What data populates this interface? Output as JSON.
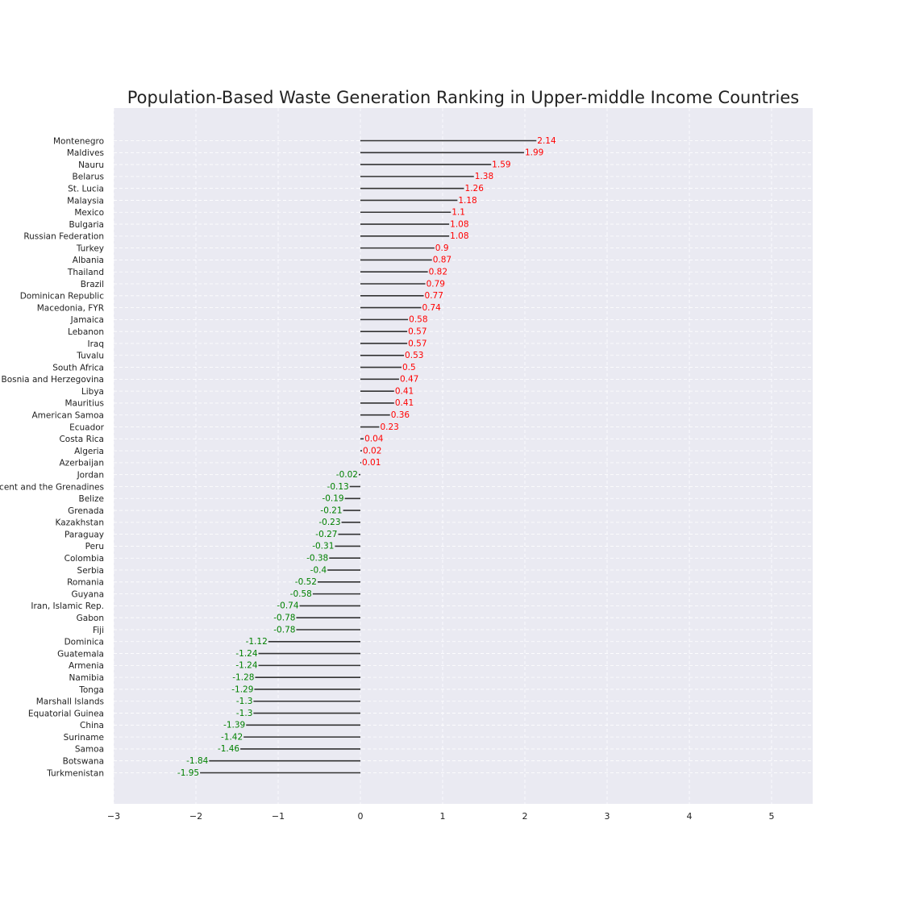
{
  "chart_data": {
    "type": "bar",
    "orientation": "horizontal",
    "title": "Population-Based Waste Generation Ranking in Upper-middle Income Countries",
    "xlabel": "",
    "ylabel": "",
    "xlim": [
      -3,
      5.5
    ],
    "xticks": [
      -3,
      -2,
      -1,
      0,
      1,
      2,
      3,
      4,
      5
    ],
    "xtick_labels": [
      "−3",
      "−2",
      "−1",
      "0",
      "1",
      "2",
      "3",
      "4",
      "5"
    ],
    "grid": true,
    "colors": {
      "positive_label": "#ff0000",
      "negative_label": "#008000",
      "line": "#333333",
      "background": "#eaeaf2",
      "grid": "#ffffff"
    },
    "categories": [
      "Montenegro",
      "Maldives",
      "Nauru",
      "Belarus",
      "St. Lucia",
      "Malaysia",
      "Mexico",
      "Bulgaria",
      "Russian Federation",
      "Turkey",
      "Albania",
      "Thailand",
      "Brazil",
      "Dominican Republic",
      "Macedonia, FYR",
      "Jamaica",
      "Lebanon",
      "Iraq",
      "Tuvalu",
      "South Africa",
      "Bosnia and Herzegovina",
      "Libya",
      "Mauritius",
      "American Samoa",
      "Ecuador",
      "Costa Rica",
      "Algeria",
      "Azerbaijan",
      "Jordan",
      "St. Vincent and the Grenadines",
      "Belize",
      "Grenada",
      "Kazakhstan",
      "Paraguay",
      "Peru",
      "Colombia",
      "Serbia",
      "Romania",
      "Guyana",
      "Iran, Islamic Rep.",
      "Gabon",
      "Fiji",
      "Dominica",
      "Guatemala",
      "Armenia",
      "Namibia",
      "Tonga",
      "Marshall Islands",
      "Equatorial Guinea",
      "China",
      "Suriname",
      "Samoa",
      "Botswana",
      "Turkmenistan"
    ],
    "values": [
      2.14,
      1.99,
      1.59,
      1.38,
      1.26,
      1.18,
      1.1,
      1.08,
      1.08,
      0.9,
      0.87,
      0.82,
      0.79,
      0.77,
      0.74,
      0.58,
      0.57,
      0.57,
      0.53,
      0.5,
      0.47,
      0.41,
      0.41,
      0.36,
      0.23,
      0.04,
      0.02,
      0.01,
      -0.02,
      -0.13,
      -0.19,
      -0.21,
      -0.23,
      -0.27,
      -0.31,
      -0.38,
      -0.4,
      -0.52,
      -0.58,
      -0.74,
      -0.78,
      -0.78,
      -1.12,
      -1.24,
      -1.24,
      -1.28,
      -1.29,
      -1.3,
      -1.3,
      -1.39,
      -1.42,
      -1.46,
      -1.84,
      -1.95
    ]
  }
}
